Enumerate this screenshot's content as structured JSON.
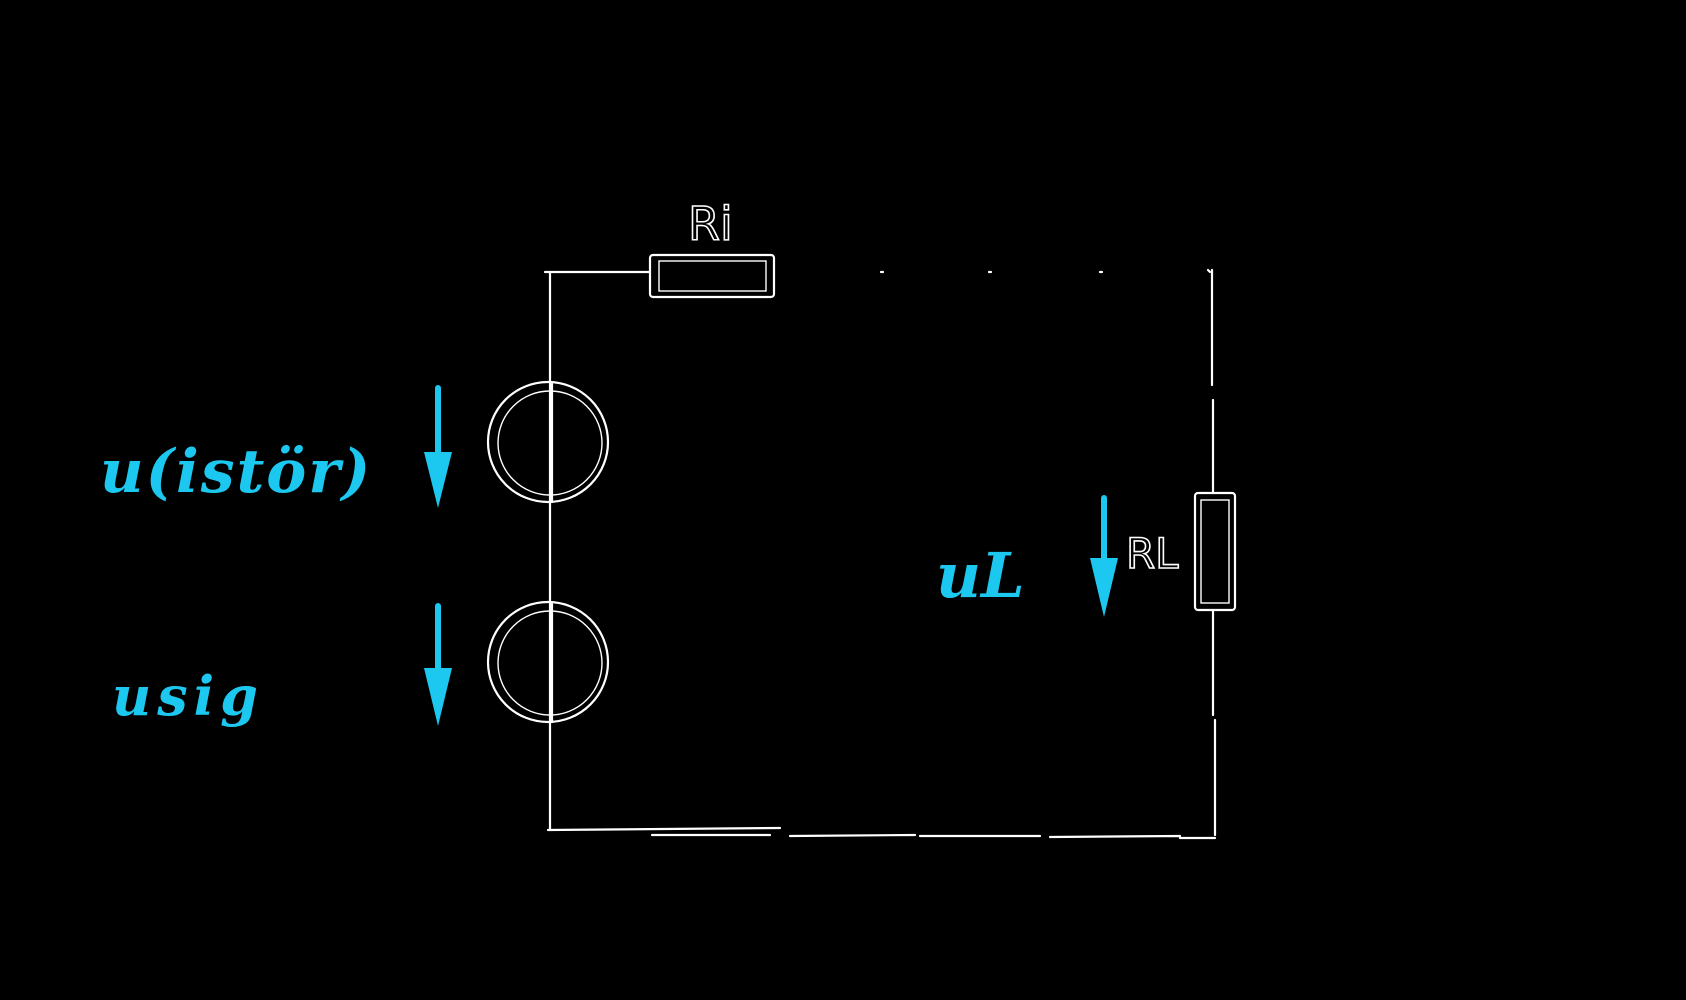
{
  "diagram": {
    "components": {
      "ri": {
        "label": "Ri"
      },
      "rl": {
        "label": "RL"
      }
    },
    "voltages": {
      "u_istor": {
        "label": "u(istör)"
      },
      "u_sig": {
        "label": "usig"
      },
      "u_l": {
        "label": "uL"
      }
    },
    "colors": {
      "background": "#000000",
      "wire": "#ffffff",
      "annotation": "#1cc8f0"
    }
  }
}
